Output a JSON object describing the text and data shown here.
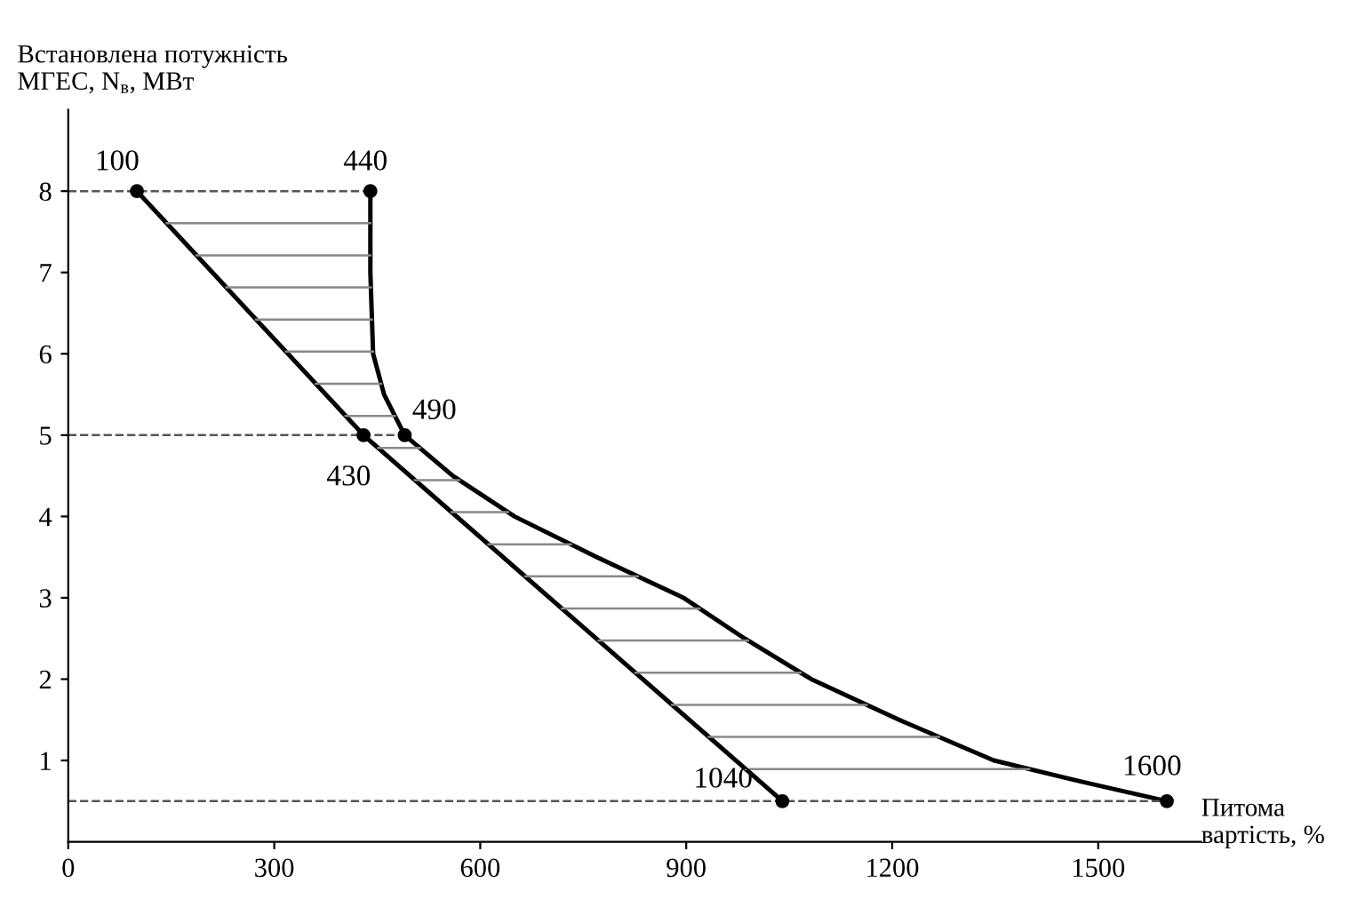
{
  "chart_data": {
    "type": "line",
    "xlabel": "Питома\nвартість, %",
    "ylabel": "Встановлена потужність\nМГЕС, N$_{в}$, МВт",
    "series": [
      {
        "color": "#000000",
        "marker": "none",
        "x": [
          100,
          430,
          735,
          1040
        ],
        "values": [
          8,
          5,
          2.75,
          0.5
        ]
      },
      {
        "color": "#000000",
        "marker": "none",
        "x": [
          440,
          440,
          442,
          444,
          460,
          490,
          560,
          650,
          770,
          896,
          985,
          1082,
          1210,
          1348,
          1470,
          1600
        ],
        "values": [
          8,
          7,
          6.5,
          6,
          5.5,
          5,
          4.5,
          4,
          3.5,
          3,
          2.5,
          2,
          1.5,
          1,
          0.75,
          0.5
        ]
      },
      {
        "type": "scatter",
        "color": "#000000",
        "x": [
          100,
          440,
          490,
          430,
          1040,
          1600
        ],
        "values": [
          8,
          8,
          5,
          5,
          0.5,
          0.5
        ]
      }
    ],
    "annotations": [
      {
        "text": "100",
        "x": 100,
        "y": 8
      },
      {
        "text": "440",
        "x": 440,
        "y": 8
      },
      {
        "text": "490",
        "x": 490,
        "y": 5
      },
      {
        "text": "430",
        "x": 430,
        "y": 5
      },
      {
        "text": "1040",
        "x": 1040,
        "y": 0.5
      },
      {
        "text": "1600",
        "x": 1600,
        "y": 0.5
      }
    ],
    "ref_lines": [
      {
        "axis": "y",
        "value": 8,
        "line_style": "dashed",
        "color": "#555555"
      },
      {
        "axis": "y",
        "value": 5,
        "line_style": "dashed",
        "color": "#555555"
      },
      {
        "axis": "y",
        "value": 0.5,
        "line_style": "dashed",
        "color": "#555555"
      }
    ],
    "marker": "circle",
    "line_style": "solid",
    "grid": false,
    "legend": false,
    "xlim": [
      0,
      1650
    ],
    "ylim": [
      0,
      9
    ],
    "xticks": [
      0,
      300,
      600,
      900,
      1200,
      1500
    ],
    "yticks": [
      1,
      2,
      3,
      4,
      5,
      6,
      7,
      8
    ]
  }
}
